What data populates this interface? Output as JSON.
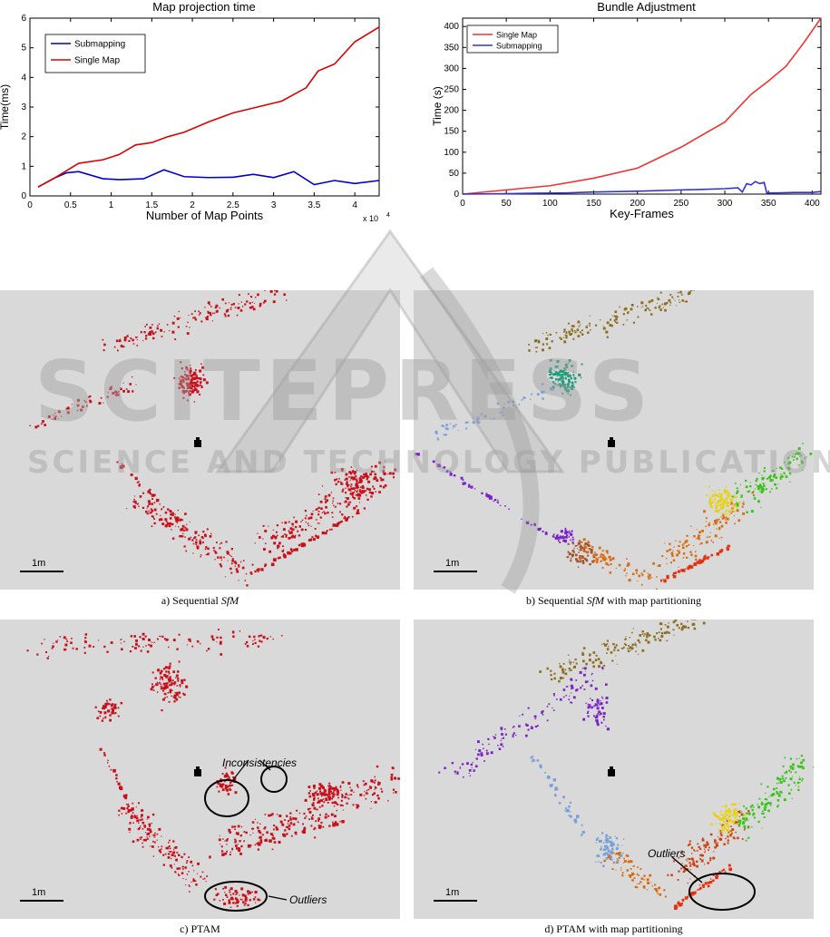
{
  "watermark": {
    "title": "SCITEPRESS",
    "subtitle": "SCIENCE AND TECHNOLOGY PUBLICATIONS"
  },
  "chart_data": [
    {
      "type": "line",
      "title": "Map projection time",
      "xlabel": "Number of Map Points",
      "ylabel": "Time(ms)",
      "x_multiplier": "x 10",
      "x_multiplier_exp": "4",
      "xlim": [
        0,
        4.3
      ],
      "ylim": [
        0,
        6
      ],
      "xticks": [
        0,
        0.5,
        1,
        1.5,
        2,
        2.5,
        3,
        3.5,
        4
      ],
      "xtick_labels": [
        "0",
        "0.5",
        "1",
        "1.5",
        "2",
        "2.5",
        "3",
        "3.5",
        "4"
      ],
      "yticks": [
        0,
        1,
        2,
        3,
        4,
        5,
        6
      ],
      "ytick_labels": [
        "0",
        "1",
        "2",
        "3",
        "4",
        "5",
        "6"
      ],
      "legend_position": "top-left",
      "series": [
        {
          "name": "Submapping",
          "color": "#0000cc",
          "x": [
            0.1,
            0.3,
            0.45,
            0.6,
            0.9,
            1.1,
            1.4,
            1.65,
            1.9,
            2.2,
            2.5,
            2.75,
            3.0,
            3.25,
            3.5,
            3.75,
            4.0,
            4.3
          ],
          "y": [
            0.3,
            0.6,
            0.78,
            0.82,
            0.58,
            0.55,
            0.58,
            0.88,
            0.65,
            0.62,
            0.63,
            0.73,
            0.62,
            0.82,
            0.38,
            0.52,
            0.42,
            0.52
          ]
        },
        {
          "name": "Single Map",
          "color": "#dd0000",
          "x": [
            0.1,
            0.3,
            0.6,
            0.9,
            1.1,
            1.3,
            1.5,
            1.7,
            1.9,
            2.2,
            2.5,
            2.8,
            3.1,
            3.4,
            3.55,
            3.75,
            4.0,
            4.3
          ],
          "y": [
            0.3,
            0.6,
            1.1,
            1.22,
            1.4,
            1.72,
            1.8,
            2.0,
            2.15,
            2.5,
            2.8,
            3.0,
            3.2,
            3.65,
            4.22,
            4.45,
            5.2,
            5.7
          ]
        }
      ]
    },
    {
      "type": "line",
      "title": "Bundle Adjustment",
      "xlabel": "Key-Frames",
      "ylabel": "Time (s)",
      "xlim": [
        0,
        410
      ],
      "ylim": [
        0,
        420
      ],
      "xticks": [
        0,
        50,
        100,
        150,
        200,
        250,
        300,
        350,
        400
      ],
      "xtick_labels": [
        "0",
        "50",
        "100",
        "150",
        "200",
        "250",
        "300",
        "350",
        "400"
      ],
      "yticks": [
        0,
        50,
        100,
        150,
        200,
        250,
        300,
        350,
        400
      ],
      "ytick_labels": [
        "0",
        "50",
        "100",
        "150",
        "200",
        "250",
        "300",
        "350",
        "400"
      ],
      "legend_position": "top-left",
      "series": [
        {
          "name": "Single Map",
          "color": "#ee3333",
          "x": [
            0,
            50,
            100,
            150,
            200,
            250,
            300,
            330,
            350,
            370,
            390,
            410
          ],
          "y": [
            0,
            10,
            20,
            38,
            62,
            112,
            172,
            238,
            270,
            305,
            360,
            420
          ]
        },
        {
          "name": "Submapping",
          "color": "#3333cc",
          "x": [
            0,
            50,
            80,
            120,
            150,
            200,
            250,
            270,
            300,
            315,
            320,
            325,
            330,
            335,
            340,
            345,
            348,
            352,
            360,
            380,
            400,
            410
          ],
          "y": [
            0,
            1,
            2,
            3,
            5,
            7,
            10,
            11,
            13,
            15,
            5,
            25,
            22,
            30,
            25,
            28,
            3,
            3,
            3,
            4,
            4,
            6
          ]
        }
      ]
    }
  ],
  "panels": [
    {
      "id": "a",
      "caption_pre": "a) Sequential ",
      "caption_ital": "SfM",
      "caption_post": "",
      "scale_label": "1m"
    },
    {
      "id": "b",
      "caption_pre": "b) Sequential ",
      "caption_ital": "SfM",
      "caption_post": " with map partitioning",
      "scale_label": "1m"
    },
    {
      "id": "c",
      "caption_pre": "c) PTAM",
      "caption_ital": "",
      "caption_post": "",
      "scale_label": "1m"
    },
    {
      "id": "d",
      "caption_pre": "d) PTAM with map partitioning",
      "caption_ital": "",
      "caption_post": "",
      "scale_label": "1m"
    }
  ],
  "annotations": {
    "c_inconsistencies": "Inconsistencies",
    "c_outliers": "Outliers",
    "d_outliers": "Outliers"
  },
  "colors": {
    "panel_bg": "#d9d9d9",
    "sfm_red": "#c8101a",
    "olive": "#8a6d1e",
    "teal": "#1f9a7a",
    "light_blue": "#7aa0d8",
    "purple": "#7a22c8",
    "orange": "#d86a10",
    "yellow": "#e6d21a",
    "green": "#38c21a"
  }
}
